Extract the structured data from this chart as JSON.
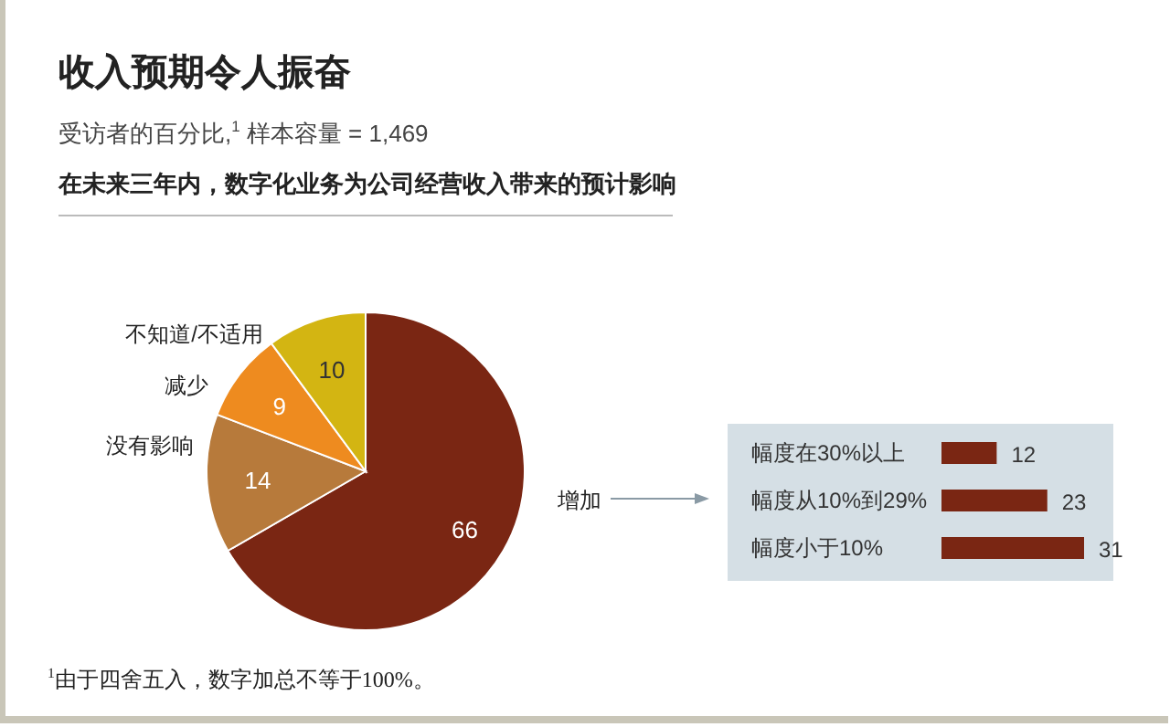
{
  "chart_data": [
    {
      "type": "pie",
      "title": "收入预期令人振奋",
      "subtitle": "受访者的百分比,$^{1}$ 样本容量 = 1,469",
      "xlabel": "在未来三年内，数字化业务为公司经营收入带来的预计影响",
      "categories": [
        "增加",
        "没有影响",
        "减少",
        "不知道/不适用"
      ],
      "values": [
        66,
        14,
        9,
        10
      ],
      "colors": [
        "#7a2613",
        "#b77a3b",
        "#ee8b1f",
        "#d3b512"
      ],
      "data_labels": true,
      "annotations": [
        "$^{1}$由于四舍五入，数字加总不等于100%。"
      ]
    },
    {
      "type": "bar",
      "orientation": "horizontal",
      "categories": [
        "幅度在30%以上",
        "幅度从10%到29%",
        "幅度小于10%"
      ],
      "values": [
        12,
        23,
        31
      ],
      "color": "#7a2613",
      "data_labels": true
    }
  ]
}
